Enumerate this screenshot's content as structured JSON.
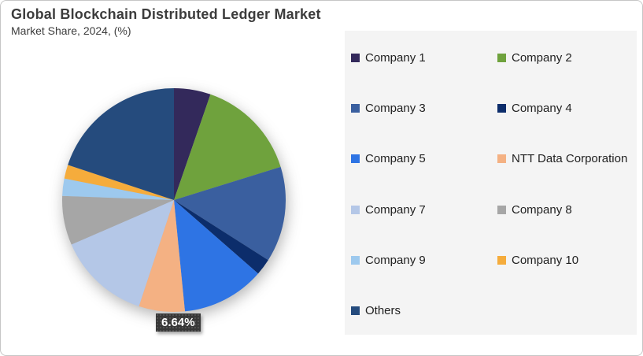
{
  "title": "Global Blockchain Distributed Ledger Market",
  "subtitle": "Market Share, 2024, (%)",
  "data_label": {
    "text": "6.64%",
    "attached_slice": "NTT Data Corporation"
  },
  "colors": {
    "title_text": "#3C3C3C",
    "legend_panel_bg": "#F4F4F4",
    "legend_text": "#1F1F1F",
    "label_box_bg": "#383838",
    "label_box_text": "#FFFFFF",
    "page_border": "#C6C6C6"
  },
  "chart_data": {
    "type": "pie",
    "title": "Global Blockchain Distributed Ledger Market",
    "subtitle": "Market Share, 2024, (%)",
    "unit": "%",
    "start_angle": "12 o'clock, clockwise",
    "legend_position": "right",
    "grid": false,
    "slices": [
      {
        "label": "Company 1",
        "value": 5.3,
        "color": "#33295B"
      },
      {
        "label": "Company 2",
        "value": 14.9,
        "color": "#6FA23D"
      },
      {
        "label": "Company 3",
        "value": 13.8,
        "color": "#3A5F9F"
      },
      {
        "label": "Company 4",
        "value": 2.4,
        "color": "#0C2D6B"
      },
      {
        "label": "Company 5",
        "value": 12.0,
        "color": "#2E74E4"
      },
      {
        "label": "NTT Data Corporation",
        "value": 6.64,
        "color": "#F4B183",
        "data_label": "6.64%"
      },
      {
        "label": "Company 7",
        "value": 13.4,
        "color": "#B4C7E7"
      },
      {
        "label": "Company 8",
        "value": 7.1,
        "color": "#A6A6A6"
      },
      {
        "label": "Company 9",
        "value": 2.5,
        "color": "#9DC9EE"
      },
      {
        "label": "Company 10",
        "value": 2.0,
        "color": "#F5AC3C"
      },
      {
        "label": "Others",
        "value": 19.9,
        "color": "#254B7D"
      }
    ]
  }
}
